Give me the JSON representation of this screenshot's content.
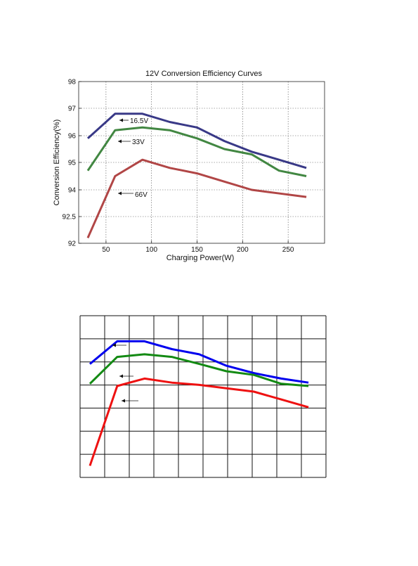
{
  "chart_data": [
    {
      "type": "line",
      "title": "12V Conversion Efficiency Curves",
      "xlabel": "Charging Power(W)",
      "ylabel": "Conversion Efficiency(%)",
      "xlim": [
        20,
        290
      ],
      "ylim": [
        92,
        98
      ],
      "xticks": [
        50,
        100,
        150,
        200,
        250
      ],
      "xtick_labels": [
        "50",
        "100",
        "150",
        "200",
        "250"
      ],
      "yticks": [
        92,
        92.5,
        94,
        95,
        96,
        97,
        98
      ],
      "ytick_labels": [
        "92",
        "92.5",
        "94",
        "95",
        "96",
        "97",
        "98"
      ],
      "grid": true,
      "series": [
        {
          "name": "16.5V",
          "color": "#23237a",
          "x": [
            30,
            60,
            90,
            120,
            150,
            180,
            210,
            240,
            270
          ],
          "y": [
            95.9,
            96.8,
            96.8,
            96.5,
            96.3,
            95.8,
            95.4,
            95.1,
            94.8
          ]
        },
        {
          "name": "33V",
          "color": "#2d7a2d",
          "x": [
            30,
            60,
            90,
            120,
            150,
            180,
            210,
            240,
            270
          ],
          "y": [
            94.7,
            96.2,
            96.3,
            96.2,
            95.9,
            95.5,
            95.3,
            94.7,
            94.5
          ]
        },
        {
          "name": "66V",
          "color": "#a83232",
          "x": [
            30,
            60,
            90,
            120,
            150,
            180,
            210,
            240,
            270
          ],
          "y": [
            92.1,
            94.5,
            95.1,
            94.8,
            94.6,
            94.3,
            94.0,
            93.8,
            93.6
          ]
        }
      ]
    },
    {
      "type": "line",
      "title": "",
      "xlabel": "",
      "ylabel": "",
      "grid": true,
      "series": [
        {
          "color": "#0000ee",
          "x": [
            30,
            60,
            90,
            120,
            150,
            180,
            210,
            240,
            270
          ],
          "y": [
            95.9,
            96.8,
            96.8,
            96.5,
            96.3,
            95.8,
            95.4,
            95.1,
            94.8
          ]
        },
        {
          "color": "#138a13",
          "x": [
            30,
            60,
            90,
            120,
            150,
            180,
            210,
            240,
            270
          ],
          "y": [
            94.7,
            96.2,
            96.3,
            96.2,
            95.9,
            95.5,
            95.3,
            94.7,
            94.5
          ]
        },
        {
          "color": "#ee1111",
          "x": [
            30,
            60,
            90,
            120,
            150,
            180,
            210,
            240,
            270
          ],
          "y": [
            92.1,
            94.5,
            95.1,
            94.8,
            94.6,
            94.3,
            94.0,
            93.8,
            93.6
          ]
        }
      ]
    }
  ]
}
